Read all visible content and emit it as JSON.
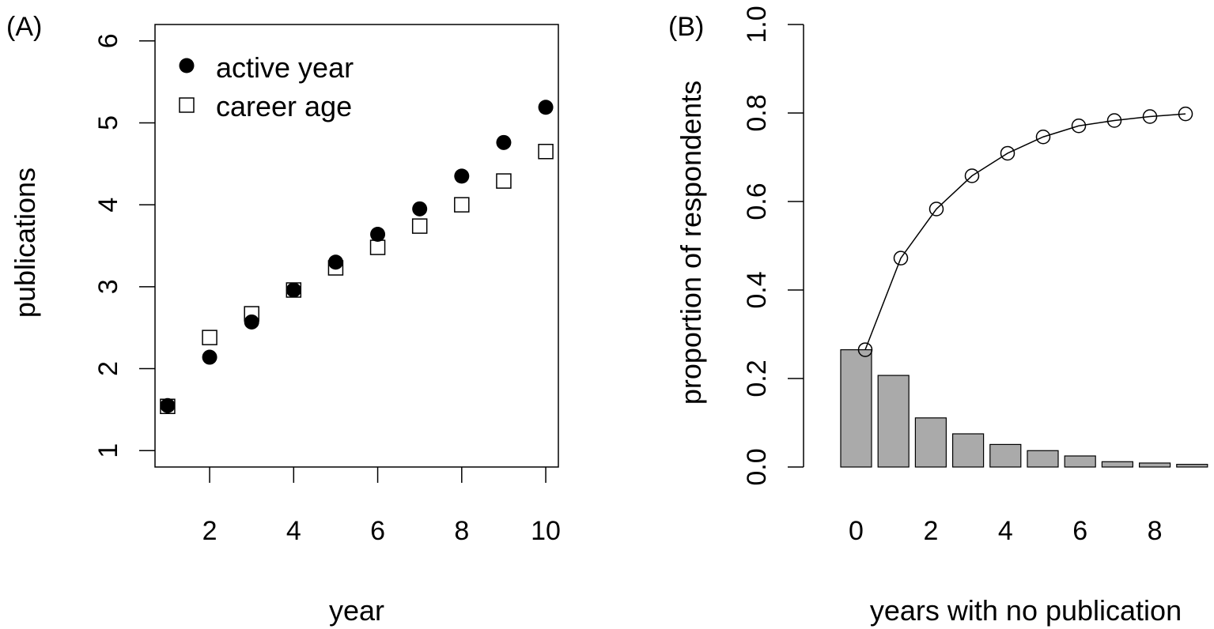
{
  "figure": {
    "panel_a_label": "(A)",
    "panel_b_label": "(B)"
  },
  "chart_data": [
    {
      "type": "scatter",
      "panel": "(A)",
      "xlabel": "year",
      "ylabel": "publications",
      "xlim": [
        0.7,
        10.3
      ],
      "ylim": [
        0.8,
        6.2
      ],
      "xticks": [
        2,
        4,
        6,
        8,
        10
      ],
      "yticks": [
        1,
        2,
        3,
        4,
        5,
        6
      ],
      "frame": true,
      "grid": false,
      "legend": "top-left",
      "series": [
        {
          "name": "active year",
          "marker": "filled-circle",
          "color": "#000000",
          "x": [
            1,
            2,
            3,
            4,
            5,
            6,
            7,
            8,
            9,
            10
          ],
          "y": [
            1.55,
            2.14,
            2.57,
            2.96,
            3.3,
            3.64,
            3.95,
            4.35,
            4.76,
            5.19
          ]
        },
        {
          "name": "career age",
          "marker": "open-square",
          "color": "#000000",
          "x": [
            1,
            2,
            3,
            4,
            5,
            6,
            7,
            8,
            9,
            10
          ],
          "y": [
            1.54,
            2.38,
            2.67,
            2.96,
            3.23,
            3.48,
            3.74,
            4.0,
            4.29,
            4.65
          ]
        }
      ]
    },
    {
      "type": "bar",
      "panel": "(B)",
      "xlabel": "years with no publication",
      "ylabel": "proportion of respondents",
      "ylim": [
        0,
        1.0
      ],
      "yticks": [
        "0.0",
        "0.2",
        "0.4",
        "0.6",
        "0.8",
        "1.0"
      ],
      "xtick_labels": [
        "0",
        "2",
        "4",
        "6",
        "8"
      ],
      "frame": false,
      "grid": false,
      "bar_color": "#aaaaaa",
      "categories": [
        0,
        1,
        2,
        3,
        4,
        5,
        6,
        7,
        8,
        9
      ],
      "values": [
        0.265,
        0.207,
        0.111,
        0.075,
        0.051,
        0.037,
        0.025,
        0.012,
        0.009,
        0.006
      ],
      "cumulative_line": {
        "marker": "open-circle",
        "values": [
          0.265,
          0.472,
          0.583,
          0.658,
          0.709,
          0.746,
          0.771,
          0.783,
          0.792,
          0.798
        ]
      }
    }
  ]
}
